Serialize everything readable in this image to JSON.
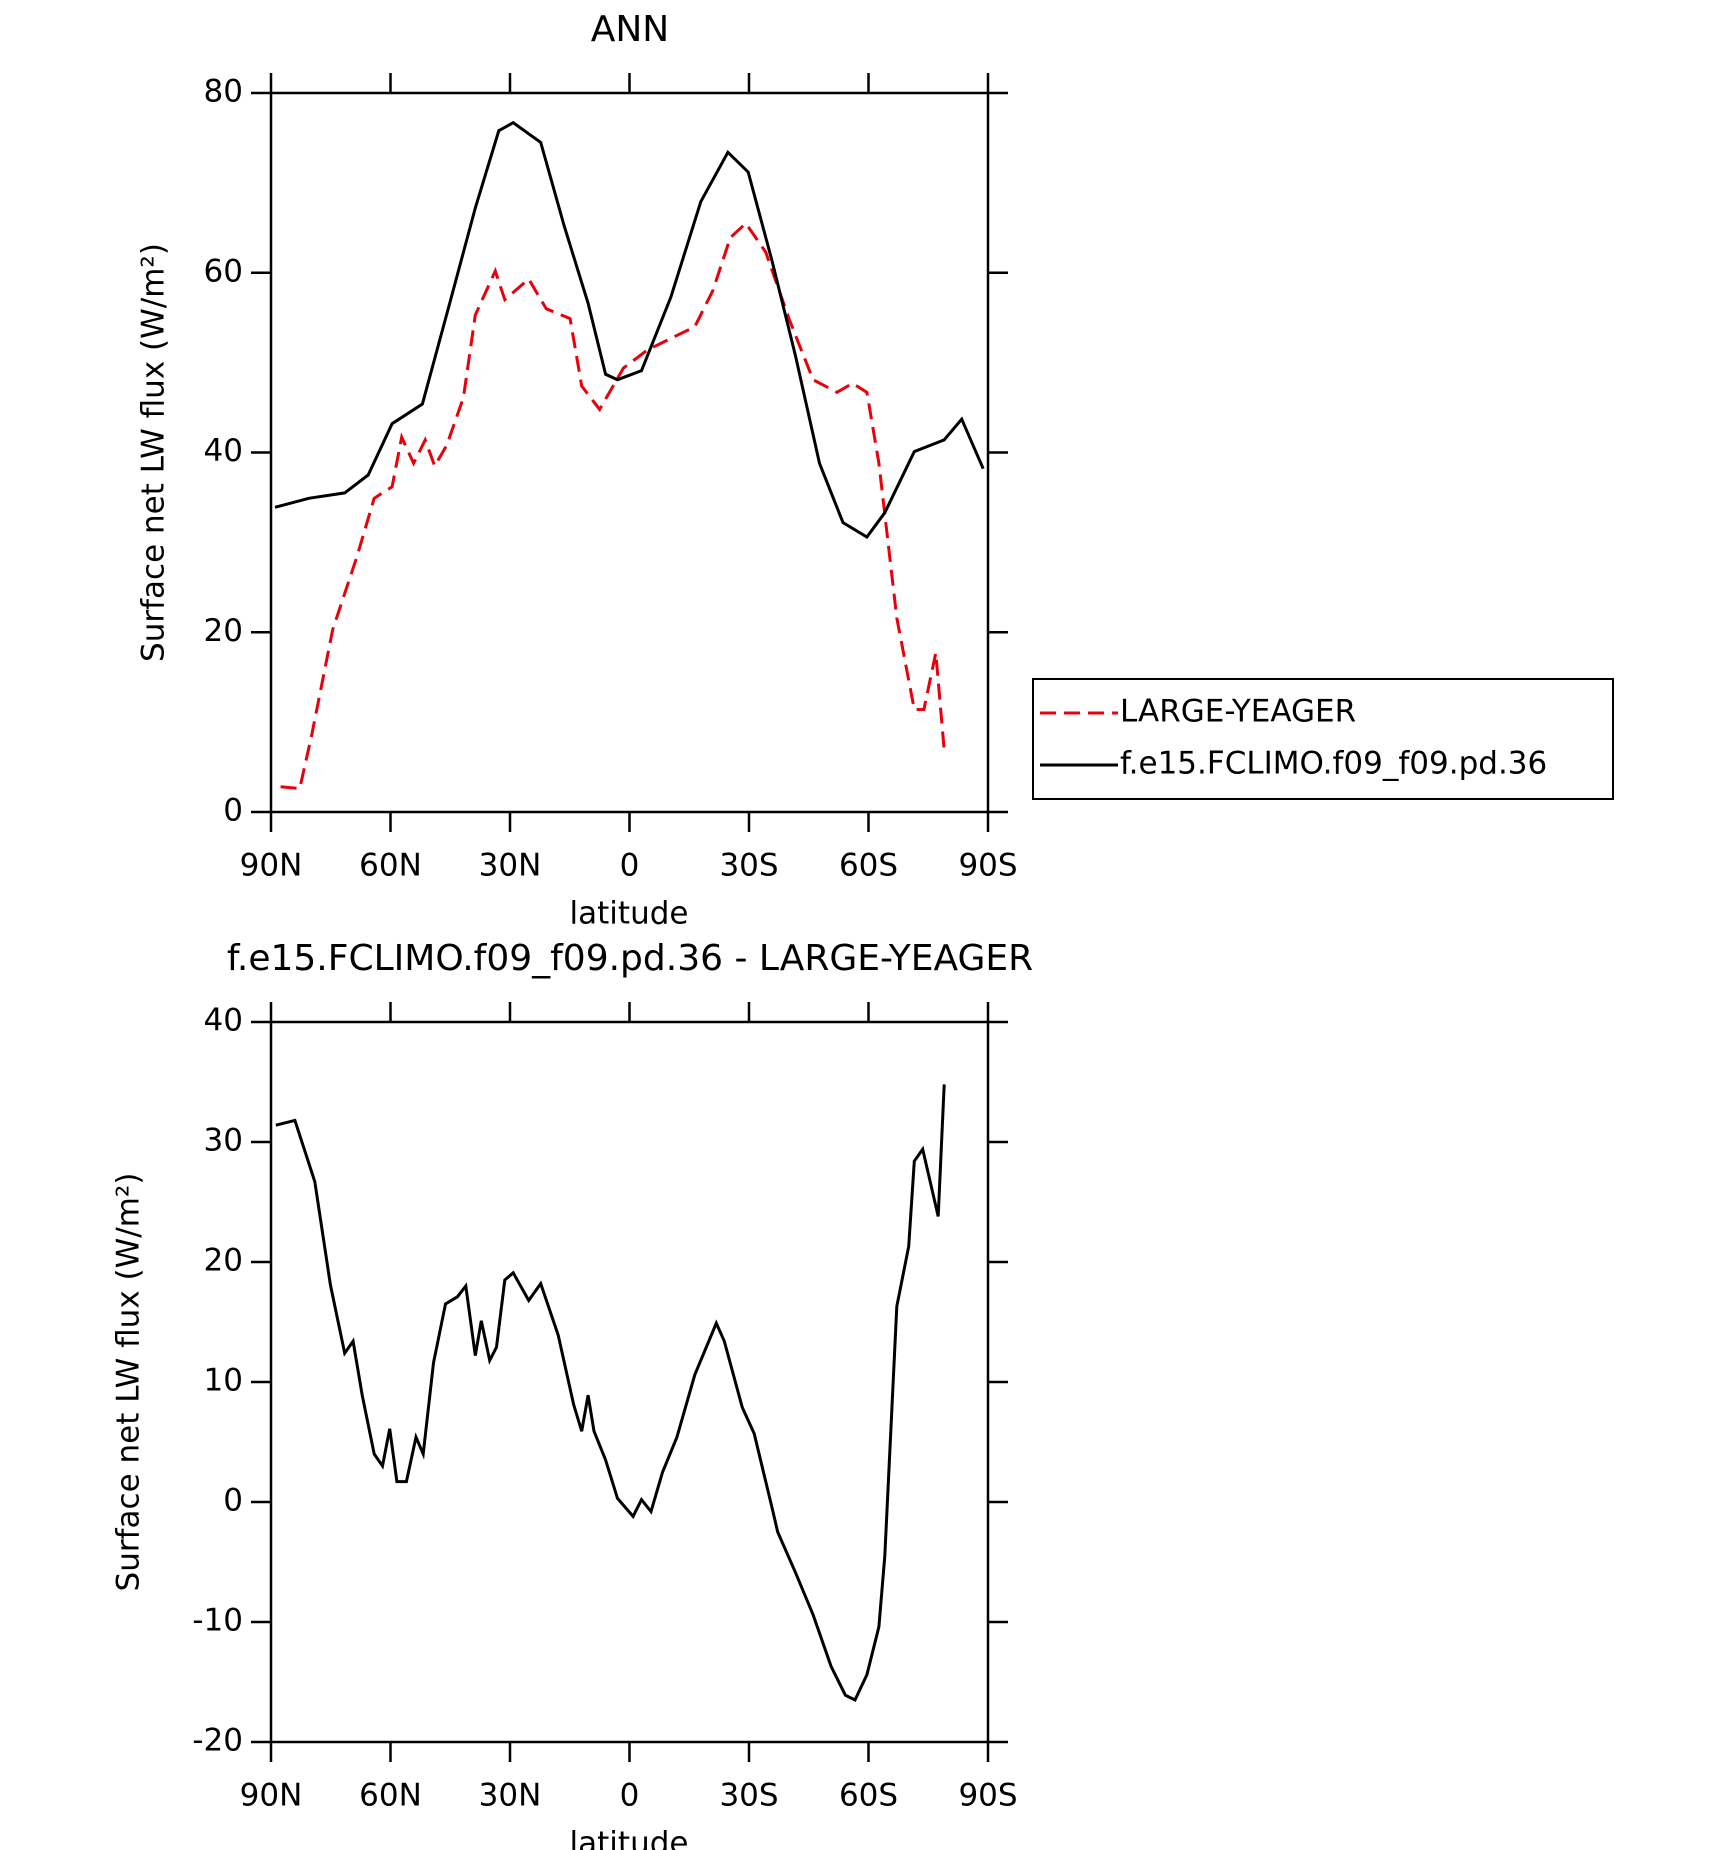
{
  "chart_data": [
    {
      "type": "line",
      "title": "ANN",
      "x_label": "latitude",
      "y_label": "Surface net LW flux (W/m²)",
      "xlim": [
        90,
        -90
      ],
      "xticks": [
        {
          "value": 90,
          "label": "90N"
        },
        {
          "value": 60,
          "label": "60N"
        },
        {
          "value": 30,
          "label": "30N"
        },
        0,
        {
          "value": -30,
          "label": "30S"
        },
        {
          "value": -60,
          "label": "60S"
        },
        {
          "value": -90,
          "label": "90S"
        }
      ],
      "ylim": [
        0,
        80
      ],
      "yticks": [
        0,
        20,
        40,
        60,
        80
      ],
      "series": [
        {
          "name": "LARGE-YEAGER",
          "color": "#e8000b",
          "dash": true,
          "x": [
            87.6,
            82.8,
            79.8,
            74.5,
            68.5,
            64.1,
            59.6,
            57.2,
            54.2,
            51.3,
            48.9,
            45.9,
            41.7,
            38.7,
            33.7,
            31.3,
            25.3,
            20.9,
            14.9,
            12,
            7.5,
            1.5,
            -4.5,
            -10.4,
            -16.4,
            -20.9,
            -25.3,
            -29.2,
            -34.2,
            -40.2,
            -46.1,
            -52.1,
            -56,
            -59.6,
            -62.6,
            -67.1,
            -71.5,
            -73.9,
            -76.9,
            -79
          ],
          "values": [
            2.8,
            2.6,
            8.5,
            20.3,
            28.3,
            34.9,
            36.2,
            41.7,
            38.8,
            41.4,
            38.5,
            40.8,
            46.1,
            55.3,
            60.2,
            57,
            59.3,
            56,
            54.9,
            47.4,
            44.8,
            49.4,
            51.4,
            52.7,
            54,
            58,
            63.9,
            65.5,
            62.3,
            54.7,
            48.1,
            46.7,
            47.7,
            46.7,
            38.8,
            21.6,
            11.4,
            11.4,
            17.7,
            6.9
          ]
        },
        {
          "name": "f.e15.FCLIMO.f09_f09.pd.36",
          "color": "#000000",
          "dash": false,
          "x": [
            89,
            80.5,
            71.5,
            65.6,
            59.6,
            52,
            44.7,
            38.7,
            32.8,
            29.2,
            22.3,
            16.4,
            10.4,
            6,
            3,
            -3,
            -10.4,
            -17.9,
            -24.7,
            -29.8,
            -35.8,
            -41.7,
            -47.7,
            -53.6,
            -59.6,
            -64.1,
            -71.5,
            -79,
            -83.4,
            -88.8
          ],
          "values": [
            33.9,
            34.9,
            35.5,
            37.5,
            43.2,
            45.4,
            57.3,
            67.2,
            75.8,
            76.7,
            74.5,
            65.2,
            56.6,
            48.7,
            48.1,
            49.1,
            57.3,
            67.9,
            73.4,
            71.2,
            61.3,
            50.7,
            38.8,
            32.2,
            30.6,
            33.3,
            40.1,
            41.4,
            43.7,
            38.2
          ]
        }
      ]
    },
    {
      "type": "line",
      "title": "f.e15.FCLIMO.f09_f09.pd.36 - LARGE-YEAGER",
      "x_label": "latitude",
      "y_label": "Surface net LW flux (W/m²)",
      "xlim": [
        90,
        -90
      ],
      "xticks": [
        {
          "value": 90,
          "label": "90N"
        },
        {
          "value": 60,
          "label": "60N"
        },
        {
          "value": 30,
          "label": "30N"
        },
        0,
        {
          "value": -30,
          "label": "30S"
        },
        {
          "value": -60,
          "label": "60S"
        },
        {
          "value": -90,
          "label": "90S"
        }
      ],
      "ylim": [
        -20,
        40
      ],
      "yticks": [
        -20,
        -10,
        0,
        10,
        20,
        30,
        40
      ],
      "series": [
        {
          "color": "#000000",
          "dash": false,
          "x": [
            88.8,
            84,
            79,
            75.1,
            71.5,
            69.4,
            67.1,
            64.1,
            62,
            60.2,
            58.4,
            56,
            53.6,
            51.8,
            49.2,
            46.2,
            43.2,
            41.1,
            38.7,
            37.2,
            35.1,
            33.4,
            31.3,
            29.2,
            25.3,
            22.3,
            17.9,
            14,
            12,
            10.4,
            8.9,
            6,
            3,
            -0.9,
            -3,
            -5.4,
            -8.3,
            -11.9,
            -16.4,
            -21.8,
            -23.8,
            -28.3,
            -31.3,
            -35.8,
            -37.2,
            -41.7,
            -46.1,
            -50.6,
            -54.2,
            -56.6,
            -59.6,
            -62.6,
            -64.1,
            -67.1,
            -70.1,
            -71.5,
            -73.6,
            -77.5,
            -79
          ],
          "values": [
            31.4,
            31.8,
            26.7,
            18.1,
            12.4,
            13.4,
            8.9,
            4,
            3,
            6.1,
            1.7,
            1.7,
            5.4,
            4,
            11.6,
            16.5,
            17.1,
            18,
            12.2,
            15.1,
            11.8,
            12.9,
            18.5,
            19.1,
            16.8,
            18.2,
            13.9,
            8.1,
            5.9,
            8.9,
            5.9,
            3.5,
            0.3,
            -1.2,
            0.2,
            -0.8,
            2.5,
            5.4,
            10.6,
            14.9,
            13.4,
            7.9,
            5.7,
            -0.5,
            -2.5,
            -5.9,
            -9.4,
            -13.7,
            -16.1,
            -16.5,
            -14.4,
            -10.4,
            -4.5,
            16.3,
            21.3,
            28.4,
            29.4,
            23.8,
            34.8
          ]
        }
      ]
    }
  ]
}
